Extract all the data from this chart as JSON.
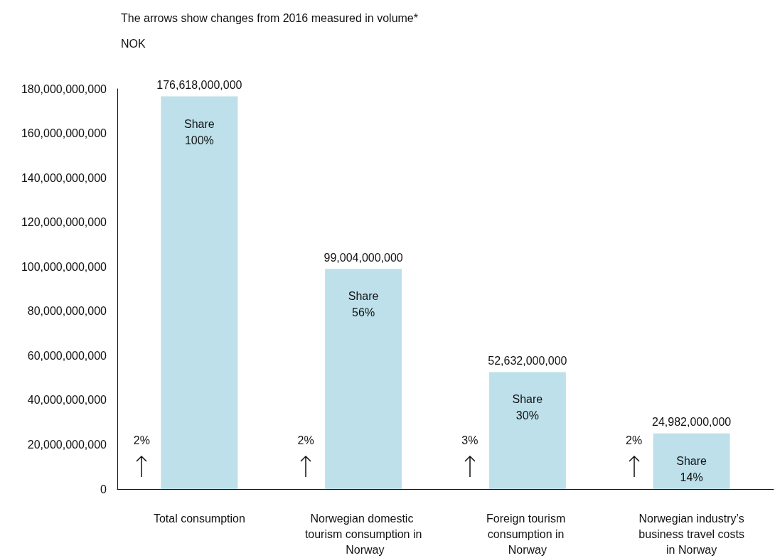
{
  "chart_data": {
    "type": "bar",
    "title": "The arrows show changes from 2016 measured in volume*",
    "ylabel": "NOK",
    "categories": [
      "Total consumption",
      "Norwegian domestic tourism consumption in Norway",
      "Foreign tourism consumption in Norway",
      "Norwegian industry’s business travel costs in Norway"
    ],
    "values": [
      176618000000,
      99004000000,
      52632000000,
      24982000000
    ],
    "value_labels": [
      "176,618,000,000",
      "99,004,000,000",
      "52,632,000,000",
      "24,982,000,000"
    ],
    "color": "#bde0ea",
    "ylim": [
      0,
      180000000000
    ],
    "yticks": [
      {
        "value": 0,
        "label": "0"
      },
      {
        "value": 20000000000,
        "label": "20,000,000,000"
      },
      {
        "value": 40000000000,
        "label": "40,000,000,000"
      },
      {
        "value": 60000000000,
        "label": "60,000,000,000"
      },
      {
        "value": 80000000000,
        "label": "80,000,000,000"
      },
      {
        "value": 100000000000,
        "label": "100,000,000,000"
      },
      {
        "value": 120000000000,
        "label": "120,000,000,000"
      },
      {
        "value": 140000000000,
        "label": "140,000,000,000"
      },
      {
        "value": 160000000000,
        "label": "160,000,000,000"
      },
      {
        "value": 180000000000,
        "label": "180,000,000,000"
      }
    ],
    "grid": false,
    "annotations": [
      "Share\n100%",
      "Share\n56%",
      "Share\n30%",
      "Share\n14%",
      "2%",
      "2%",
      "3%",
      "2%"
    ]
  }
}
